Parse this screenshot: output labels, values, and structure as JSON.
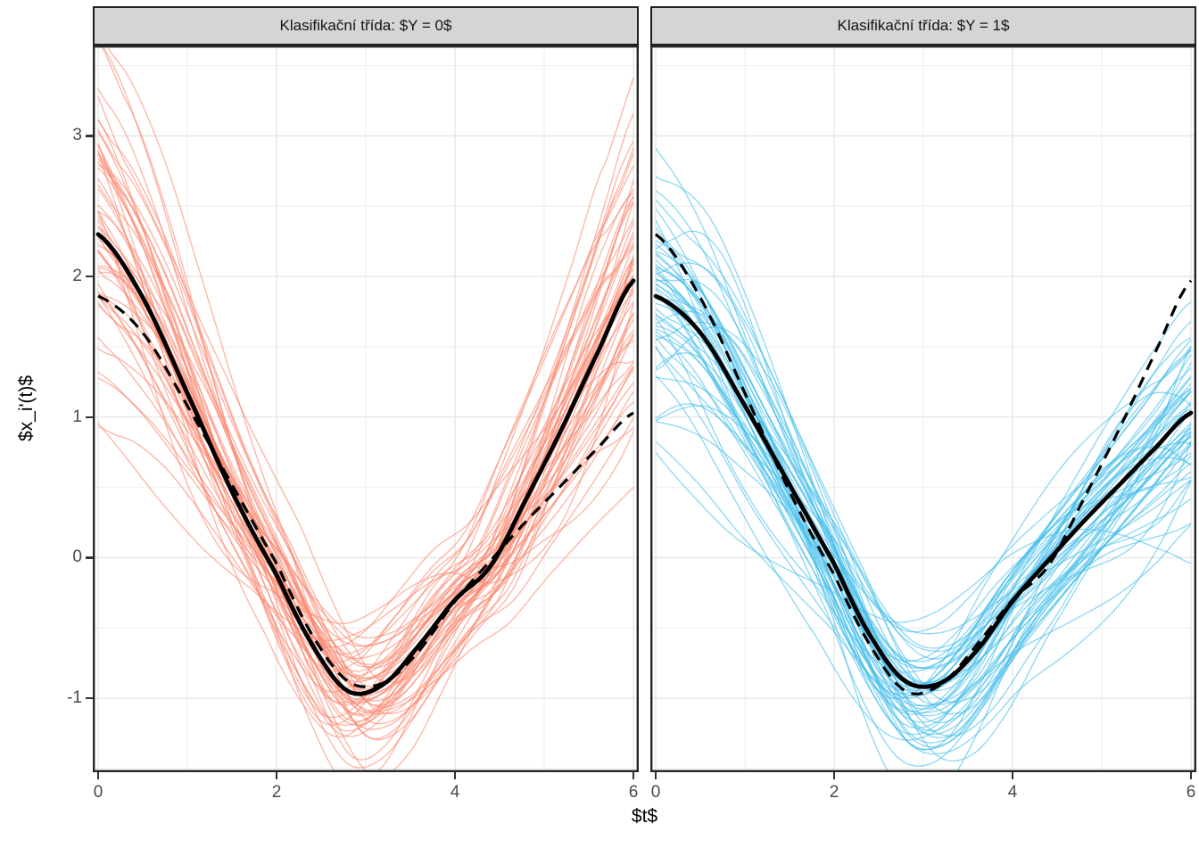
{
  "chart_data": {
    "type": "line",
    "title": "",
    "xlabel": "$t$",
    "ylabel": "$x_i'(t)$",
    "x_ticks": [
      0,
      2,
      4,
      6
    ],
    "y_ticks": [
      -1,
      0,
      1,
      2,
      3
    ],
    "x_minor_ticks": [
      1,
      3,
      5
    ],
    "y_minor_ticks": [
      -1.5,
      -0.5,
      0.5,
      1.5,
      2.5,
      3.5
    ],
    "xlim": [
      -0.06,
      6.06
    ],
    "ylim": [
      -1.53,
      3.64
    ],
    "grid": "major+minor",
    "legend": "none",
    "facet_variable": "Klasifikační třída",
    "mean_t": [
      0,
      0.5,
      1,
      1.5,
      2,
      2.4,
      2.8,
      3.2,
      3.6,
      4,
      4.4,
      4.8,
      5.2,
      5.6,
      6
    ],
    "series": [
      {
        "name": "mean class Y=0",
        "values": [
          2.3,
          1.85,
          1.17,
          0.47,
          -0.12,
          -0.62,
          -0.95,
          -0.9,
          -0.62,
          -0.3,
          -0.06,
          0.42,
          0.92,
          1.46,
          1.97
        ]
      },
      {
        "name": "mean class Y=1",
        "values": [
          1.86,
          1.6,
          1.08,
          0.52,
          -0.04,
          -0.55,
          -0.88,
          -0.89,
          -0.66,
          -0.31,
          -0.02,
          0.26,
          0.52,
          0.78,
          1.03
        ]
      }
    ],
    "facets": [
      {
        "strip_label": "Klasifikační třída: $Y = 0$",
        "class": "Y = 0",
        "curve_color": "#FB8269",
        "n_sample_curves": 55,
        "seed": 11,
        "solid_mean_series": 0,
        "dashed_mean_series": 1
      },
      {
        "strip_label": "Klasifikační třída: $Y = 1$",
        "class": "Y = 1",
        "curve_color": "#3FBDEB",
        "n_sample_curves": 55,
        "seed": 29,
        "solid_mean_series": 1,
        "dashed_mean_series": 0
      }
    ],
    "ensemble_style": {
      "opacity": 0.6,
      "stroke_width": 1.3,
      "amp_sd": 0.22,
      "shift_sd": 0.18,
      "offset_sd": 0.16,
      "wiggle_sd": 0.22
    },
    "theme": {
      "mean_color": "#000000",
      "mean_solid_width": 4.8,
      "mean_dashed_width": 3.2,
      "dash_pattern": "13 9",
      "panel_bg": "#ffffff",
      "panel_border": "#262626",
      "grid_major": "#e6e6e6",
      "grid_minor": "#f1f1f1",
      "strip_bg": "#d5d5d5",
      "strip_border": "#1f1f1f",
      "tick_color": "#333333",
      "tick_label_color": "#4a4a4a"
    }
  }
}
